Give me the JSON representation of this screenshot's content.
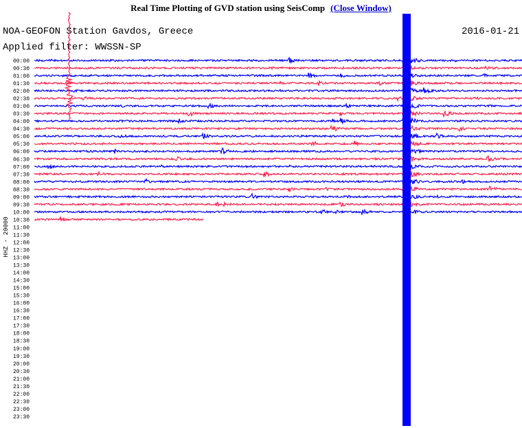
{
  "header": {
    "title": "Real Time Plotting of GVD station using SeisComp",
    "close_link": "(Close Window)"
  },
  "station": "NOA-GEOFON Station Gavdos, Greece",
  "date": "2016-01-21",
  "filter": "Applied filter: WWSSN-SP",
  "channel_label": "HHZ - 20000",
  "rows": [
    "00:00",
    "00:30",
    "01:00",
    "01:30",
    "02:00",
    "02:30",
    "03:00",
    "03:30",
    "04:00",
    "04:30",
    "05:00",
    "05:30",
    "06:00",
    "06:30",
    "07:00",
    "07:30",
    "08:00",
    "08:30",
    "09:00",
    "09:30",
    "10:00",
    "10:30",
    "11:00",
    "11:30",
    "12:00",
    "12:30",
    "13:00",
    "13:30",
    "14:00",
    "14:30",
    "15:00",
    "15:30",
    "16:00",
    "16:30",
    "17:00",
    "17:30",
    "18:00",
    "18:30",
    "19:00",
    "19:30",
    "20:00",
    "20:30",
    "21:00",
    "21:30",
    "22:00",
    "22:30",
    "23:00",
    "23:30"
  ]
}
